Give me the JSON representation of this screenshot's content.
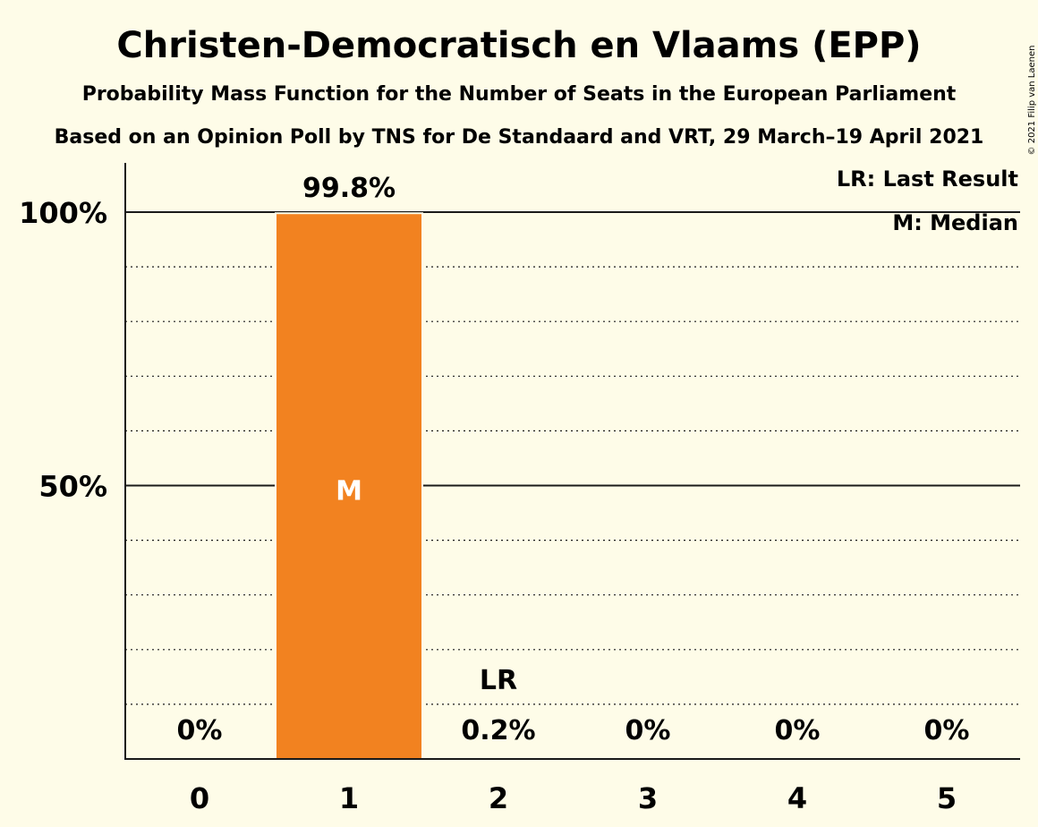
{
  "title": "Christen-Democratisch en Vlaams (EPP)",
  "subtitle1": "Probability Mass Function for the Number of Seats in the European Parliament",
  "subtitle2": "Based on an Opinion Poll by TNS for De Standaard and VRT, 29 March–19 April 2021",
  "copyright": "© 2021 Filip van Laenen",
  "legend": {
    "lr": "LR: Last Result",
    "m": "M: Median"
  },
  "colors": {
    "background": "#fefce8",
    "bar": "#f28220",
    "text": "#1a1a1a"
  },
  "chart_data": {
    "type": "bar",
    "categories": [
      "0",
      "1",
      "2",
      "3",
      "4",
      "5"
    ],
    "values": [
      0,
      99.8,
      0.2,
      0,
      0,
      0
    ],
    "value_labels": [
      "0%",
      "99.8%",
      "0.2%",
      "0%",
      "0%",
      "0%"
    ],
    "ylim": [
      0,
      110
    ],
    "y_ticks": [
      {
        "value": 50,
        "label": "50%"
      },
      {
        "value": 100,
        "label": "100%"
      }
    ],
    "minor_gridlines": [
      10,
      20,
      30,
      40,
      60,
      70,
      80,
      90
    ],
    "median_category": "1",
    "median_label": "M",
    "last_result_category": "2",
    "last_result_label": "LR",
    "legend_position": "top-right"
  }
}
